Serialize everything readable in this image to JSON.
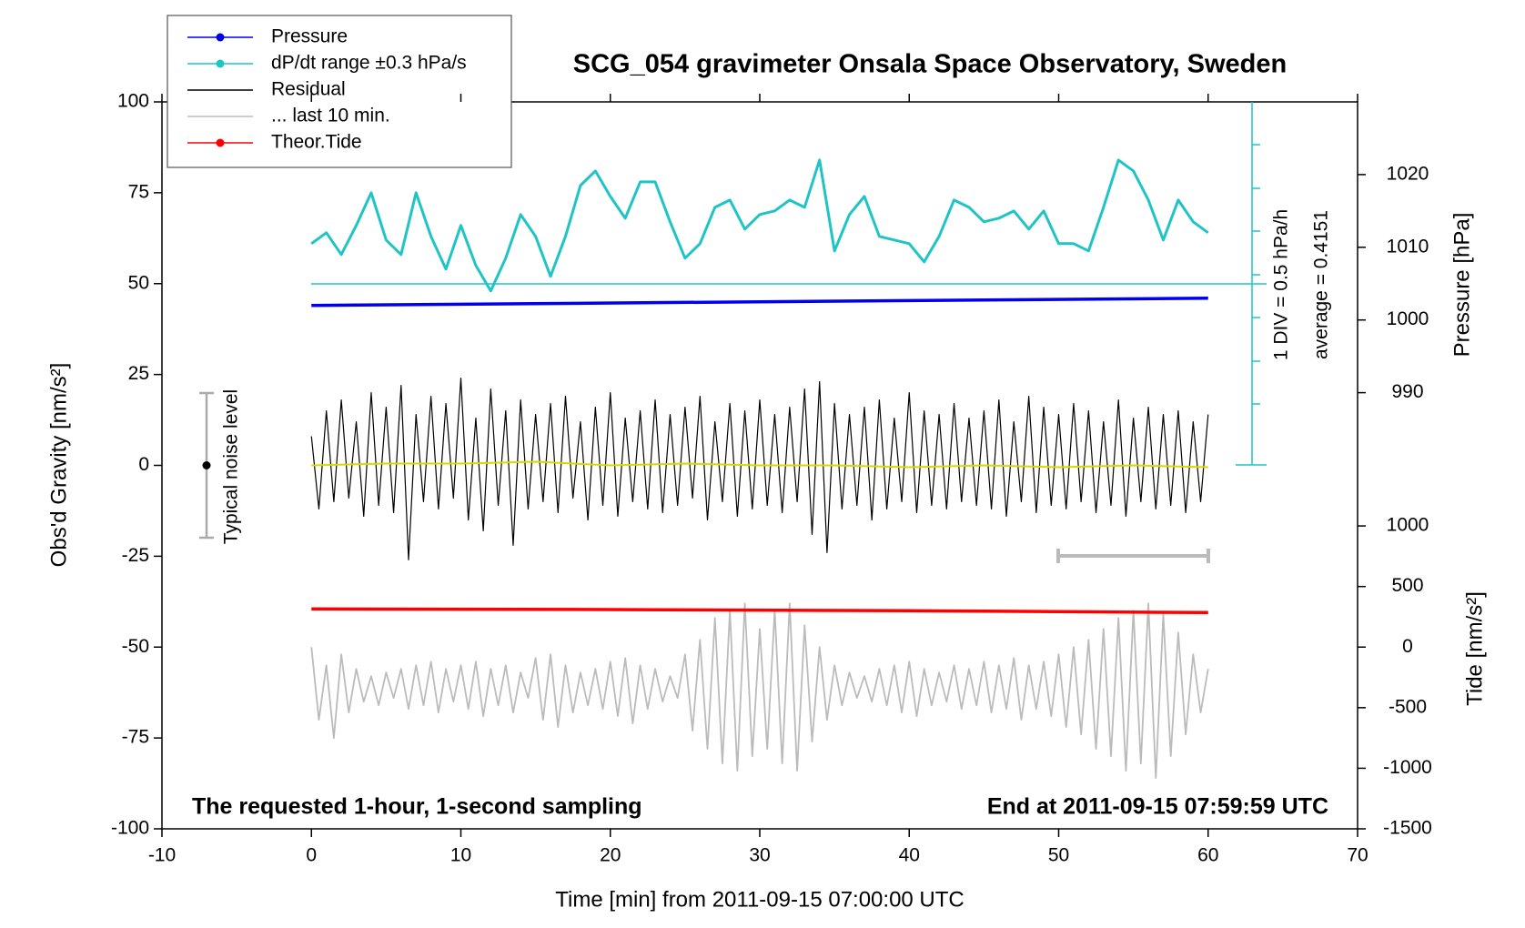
{
  "chart_data": {
    "type": "line",
    "title": "SCG_054 gravimeter Onsala Space Observatory, Sweden",
    "xlabel": "Time [min] from 2011-09-15 07:00:00 UTC",
    "ylabel": "Obs'd Gravity [nm/s²]",
    "y2label": "Pressure [hPa]",
    "y3label": "Tide [nm/s²]",
    "xlim": [
      -10,
      70
    ],
    "xticks": [
      -10,
      0,
      10,
      20,
      30,
      40,
      50,
      60,
      70
    ],
    "ylim": [
      -100,
      100
    ],
    "yticks": [
      -100,
      -75,
      -50,
      -25,
      0,
      25,
      50,
      75,
      100
    ],
    "y2lim": [
      930,
      1030
    ],
    "y2ticks": [
      990,
      1000,
      1010,
      1020
    ],
    "y3lim": [
      -1500,
      4500
    ],
    "y3ticks": [
      -1500,
      -1000,
      -500,
      0,
      500,
      1000
    ],
    "annotations": {
      "div": "1 DIV = 0.5 hPa/h",
      "average": "average = 0.4151",
      "noise": "Typical noise level",
      "sampling": "The requested 1-hour, 1-second sampling",
      "end": "End at 2011-09-15 07:59:59 UTC"
    },
    "series": [
      {
        "name": "Pressure",
        "color": "#0000ee",
        "axis": "y2",
        "marker": true,
        "x": [
          0,
          60
        ],
        "values": [
          1002,
          1003
        ]
      },
      {
        "name": "dP/dt range ±0.3 hPa/s",
        "color": "#1fc4c4",
        "marker": true,
        "x": [
          0,
          1,
          2,
          3,
          4,
          5,
          6,
          7,
          8,
          9,
          10,
          11,
          12,
          13,
          14,
          15,
          16,
          17,
          18,
          19,
          20,
          21,
          22,
          23,
          24,
          25,
          26,
          27,
          28,
          29,
          30,
          31,
          32,
          33,
          34,
          35,
          36,
          37,
          38,
          39,
          40,
          41,
          42,
          43,
          44,
          45,
          46,
          47,
          48,
          49,
          50,
          51,
          52,
          53,
          54,
          55,
          56,
          57,
          58,
          59,
          60
        ],
        "values": [
          61,
          64,
          58,
          66,
          75,
          62,
          58,
          75,
          63,
          54,
          66,
          55,
          48,
          57,
          69,
          63,
          52,
          63,
          77,
          81,
          74,
          68,
          78,
          78,
          67,
          57,
          61,
          71,
          73,
          65,
          69,
          70,
          73,
          71,
          84,
          59,
          69,
          74,
          63,
          62,
          61,
          56,
          63,
          73,
          71,
          67,
          68,
          70,
          65,
          70,
          61,
          61,
          59,
          71,
          84,
          81,
          73,
          62,
          73,
          67,
          64
        ]
      },
      {
        "name": "Residual",
        "color": "#000000",
        "x": [
          0,
          0.5,
          1,
          1.5,
          2,
          2.5,
          3,
          3.5,
          4,
          4.5,
          5,
          5.5,
          6,
          6.5,
          7,
          7.5,
          8,
          8.5,
          9,
          9.5,
          10,
          10.5,
          11,
          11.5,
          12,
          12.5,
          13,
          13.5,
          14,
          14.5,
          15,
          15.5,
          16,
          16.5,
          17,
          17.5,
          18,
          18.5,
          19,
          19.5,
          20,
          20.5,
          21,
          21.5,
          22,
          22.5,
          23,
          23.5,
          24,
          24.5,
          25,
          25.5,
          26,
          26.5,
          27,
          27.5,
          28,
          28.5,
          29,
          29.5,
          30,
          30.5,
          31,
          31.5,
          32,
          32.5,
          33,
          33.5,
          34,
          34.5,
          35,
          35.5,
          36,
          36.5,
          37,
          37.5,
          38,
          38.5,
          39,
          39.5,
          40,
          40.5,
          41,
          41.5,
          42,
          42.5,
          43,
          43.5,
          44,
          44.5,
          45,
          45.5,
          46,
          46.5,
          47,
          47.5,
          48,
          48.5,
          49,
          49.5,
          50,
          50.5,
          51,
          51.5,
          52,
          52.5,
          53,
          53.5,
          54,
          54.5,
          55,
          55.5,
          56,
          56.5,
          57,
          57.5,
          58,
          58.5,
          59,
          59.5,
          60
        ],
        "values": [
          8,
          -12,
          15,
          -10,
          18,
          -9,
          12,
          -14,
          20,
          -11,
          16,
          -13,
          22,
          -26,
          14,
          -10,
          19,
          -12,
          17,
          -9,
          24,
          -15,
          13,
          -18,
          21,
          -11,
          15,
          -22,
          18,
          -12,
          14,
          -10,
          17,
          -13,
          19,
          -9,
          12,
          -15,
          16,
          -11,
          20,
          -14,
          13,
          -10,
          15,
          -12,
          18,
          -13,
          14,
          -11,
          16,
          -9,
          19,
          -15,
          12,
          -10,
          17,
          -14,
          15,
          -12,
          18,
          -11,
          14,
          -13,
          16,
          -10,
          21,
          -19,
          23,
          -24,
          17,
          -12,
          14,
          -11,
          16,
          -15,
          18,
          -12,
          13,
          -10,
          20,
          -13,
          15,
          -11,
          14,
          -12,
          17,
          -10,
          13,
          -11,
          15,
          -12,
          18,
          -14,
          12,
          -10,
          19,
          -13,
          16,
          -11,
          14,
          -12,
          17,
          -10,
          15,
          -13,
          12,
          -11,
          18,
          -14,
          13,
          -10,
          16,
          -12,
          14,
          -11,
          15,
          -13,
          12,
          -10,
          14
        ]
      },
      {
        "name": "... last 10 min.",
        "color": "#bbbbbb",
        "x": [
          0,
          0.5,
          1,
          1.5,
          2,
          2.5,
          3,
          3.5,
          4,
          4.5,
          5,
          5.5,
          6,
          6.5,
          7,
          7.5,
          8,
          8.5,
          9,
          9.5,
          10,
          10.5,
          11,
          11.5,
          12,
          12.5,
          13,
          13.5,
          14,
          14.5,
          15,
          15.5,
          16,
          16.5,
          17,
          17.5,
          18,
          18.5,
          19,
          19.5,
          20,
          20.5,
          21,
          21.5,
          22,
          22.5,
          23,
          23.5,
          24,
          24.5,
          25,
          25.5,
          26,
          26.5,
          27,
          27.5,
          28,
          28.5,
          29,
          29.5,
          30,
          30.5,
          31,
          31.5,
          32,
          32.5,
          33,
          33.5,
          34,
          34.5,
          35,
          35.5,
          36,
          36.5,
          37,
          37.5,
          38,
          38.5,
          39,
          39.5,
          40,
          40.5,
          41,
          41.5,
          42,
          42.5,
          43,
          43.5,
          44,
          44.5,
          45,
          45.5,
          46,
          46.5,
          47,
          47.5,
          48,
          48.5,
          49,
          49.5,
          50,
          50.5,
          51,
          51.5,
          52,
          52.5,
          53,
          53.5,
          54,
          54.5,
          55,
          55.5,
          56,
          56.5,
          57,
          57.5,
          58,
          58.5,
          59,
          59.5,
          60
        ],
        "values": [
          -50,
          -70,
          -55,
          -75,
          -52,
          -68,
          -56,
          -65,
          -58,
          -66,
          -57,
          -64,
          -56,
          -67,
          -55,
          -66,
          -54,
          -68,
          -56,
          -65,
          -55,
          -67,
          -54,
          -69,
          -56,
          -66,
          -55,
          -68,
          -57,
          -64,
          -53,
          -70,
          -52,
          -72,
          -55,
          -68,
          -57,
          -66,
          -56,
          -67,
          -54,
          -69,
          -53,
          -71,
          -55,
          -67,
          -56,
          -65,
          -58,
          -64,
          -52,
          -73,
          -48,
          -78,
          -42,
          -82,
          -40,
          -84,
          -38,
          -80,
          -45,
          -78,
          -40,
          -82,
          -38,
          -84,
          -44,
          -76,
          -50,
          -70,
          -55,
          -66,
          -57,
          -64,
          -58,
          -65,
          -56,
          -66,
          -55,
          -68,
          -54,
          -69,
          -56,
          -66,
          -57,
          -65,
          -55,
          -67,
          -56,
          -66,
          -54,
          -68,
          -55,
          -67,
          -53,
          -70,
          -55,
          -67,
          -54,
          -69,
          -52,
          -72,
          -50,
          -74,
          -48,
          -78,
          -45,
          -80,
          -42,
          -84,
          -40,
          -82,
          -38,
          -86,
          -41,
          -80,
          -46,
          -74,
          -52,
          -68,
          -56
        ]
      },
      {
        "name": "Theor.Tide",
        "color": "#ff0000",
        "axis": "y3",
        "marker": true,
        "x": [
          0,
          20,
          40,
          60
        ],
        "values": [
          315,
          310,
          300,
          285
        ]
      }
    ],
    "smoothed": {
      "color": "#d8d800",
      "x": [
        0,
        5,
        10,
        15,
        20,
        25,
        30,
        35,
        40,
        45,
        50,
        55,
        60
      ],
      "values": [
        0,
        0.5,
        0.5,
        1,
        0,
        0.5,
        0,
        0,
        -0.5,
        0,
        -0.5,
        0,
        -0.5
      ]
    }
  }
}
